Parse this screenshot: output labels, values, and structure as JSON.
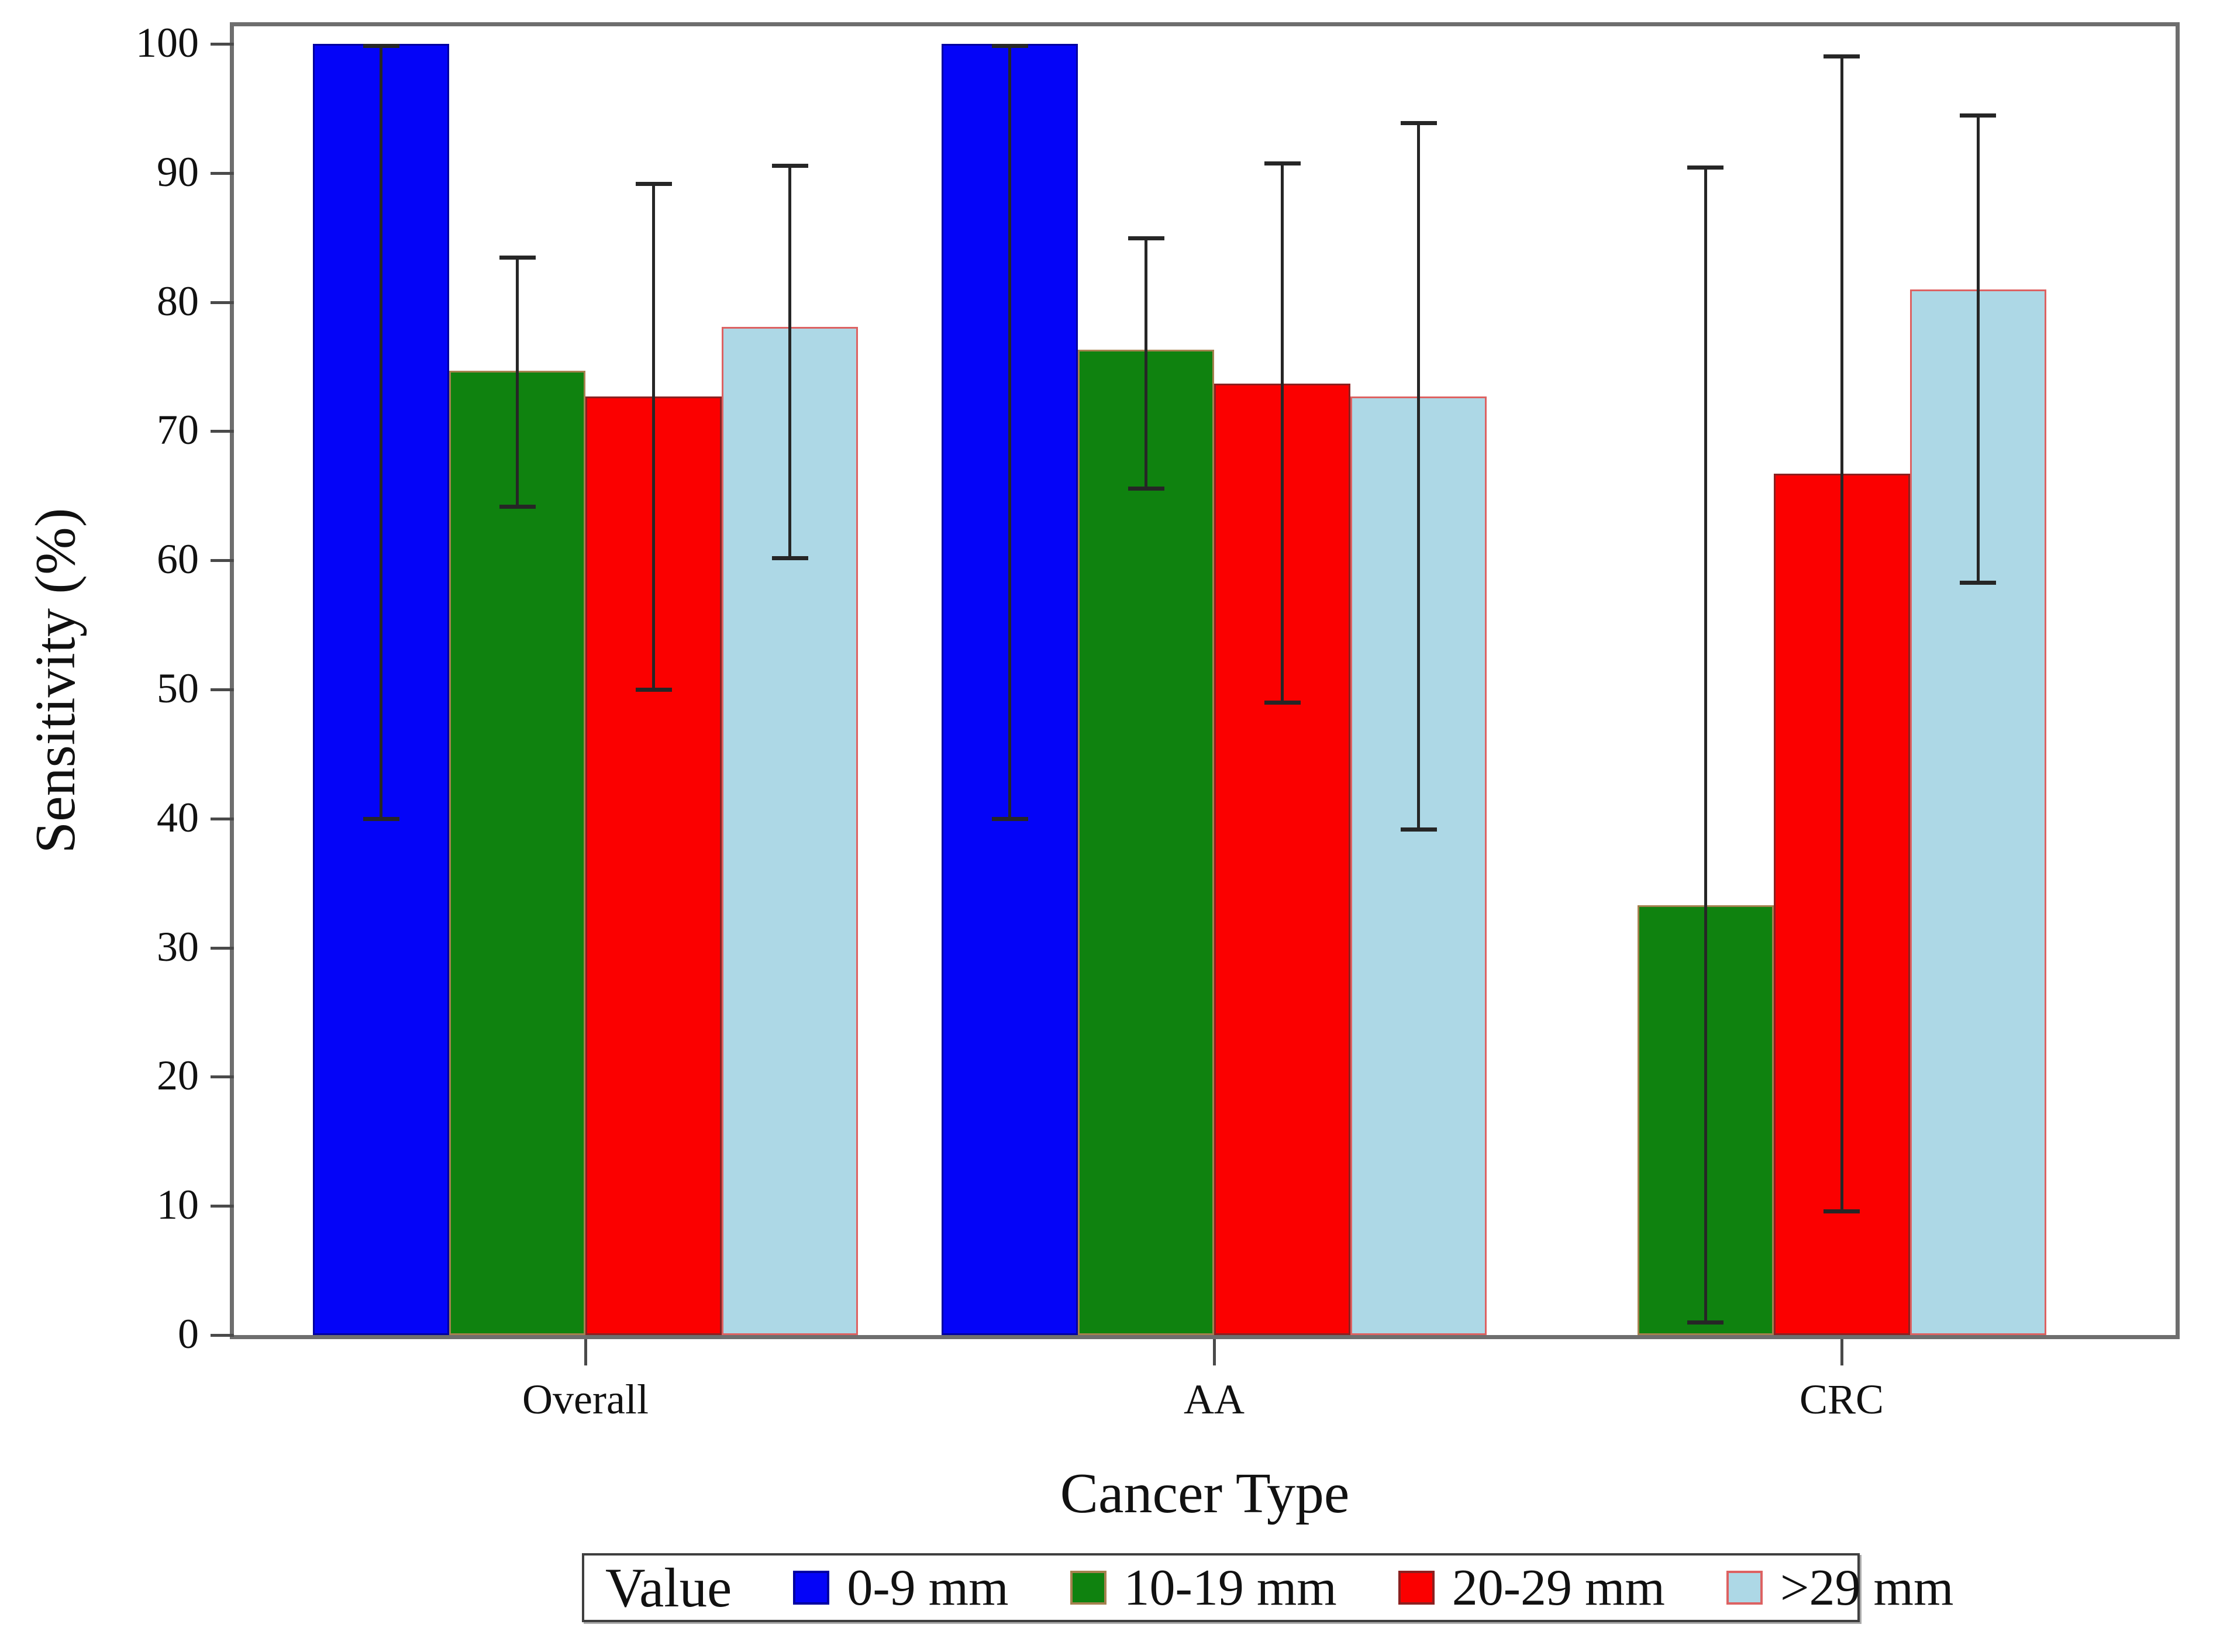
{
  "y_axis": {
    "title": "Sensitivity (%)",
    "ticks": [
      0,
      10,
      20,
      30,
      40,
      50,
      60,
      70,
      80,
      90,
      100
    ],
    "range": [
      0,
      100
    ]
  },
  "x_axis": {
    "title": "Cancer Type",
    "categories": [
      "Overall",
      "AA",
      "CRC"
    ]
  },
  "legend": {
    "title": "Value",
    "items": [
      "0-9 mm",
      "10-19 mm",
      "20-29 mm",
      ">29 mm"
    ]
  },
  "colors": {
    "axis_frame": "#6e6e6e",
    "error_bar": "#262626",
    "text": "#111111"
  },
  "chart_data": {
    "type": "bar",
    "title": "",
    "xlabel": "Cancer Type",
    "ylabel": "Sensitivity (%)",
    "ylim": [
      0,
      100
    ],
    "grid": false,
    "legend_position": "bottom",
    "error_bars": "95% confidence interval whiskers with caps",
    "categories": [
      "Overall",
      "AA",
      "CRC"
    ],
    "series": [
      {
        "name": "0-9 mm",
        "color": "#0404f8",
        "outline": "#0000a0",
        "values": [
          100,
          100,
          null
        ],
        "ci_low": [
          39.8,
          39.8,
          null
        ],
        "ci_high": [
          100,
          100,
          null
        ]
      },
      {
        "name": "10-19 mm",
        "color": "#0f820f",
        "outline": "#a5814f",
        "values": [
          74.7,
          76.3,
          33.3
        ],
        "ci_low": [
          64.0,
          65.4,
          0.8
        ],
        "ci_high": [
          83.6,
          85.1,
          90.6
        ]
      },
      {
        "name": "20-29 mm",
        "color": "#fb0000",
        "outline": "#8b2020",
        "values": [
          72.7,
          73.7,
          66.7
        ],
        "ci_low": [
          49.8,
          48.8,
          9.4
        ],
        "ci_high": [
          89.3,
          90.9,
          99.2
        ]
      },
      {
        "name": ">29 mm",
        "color": "#add8e6",
        "outline": "#dd6262",
        "values": [
          78.1,
          72.7,
          81.0
        ],
        "ci_low": [
          60.0,
          39.0,
          58.1
        ],
        "ci_high": [
          90.7,
          94.0,
          94.6
        ]
      }
    ]
  }
}
